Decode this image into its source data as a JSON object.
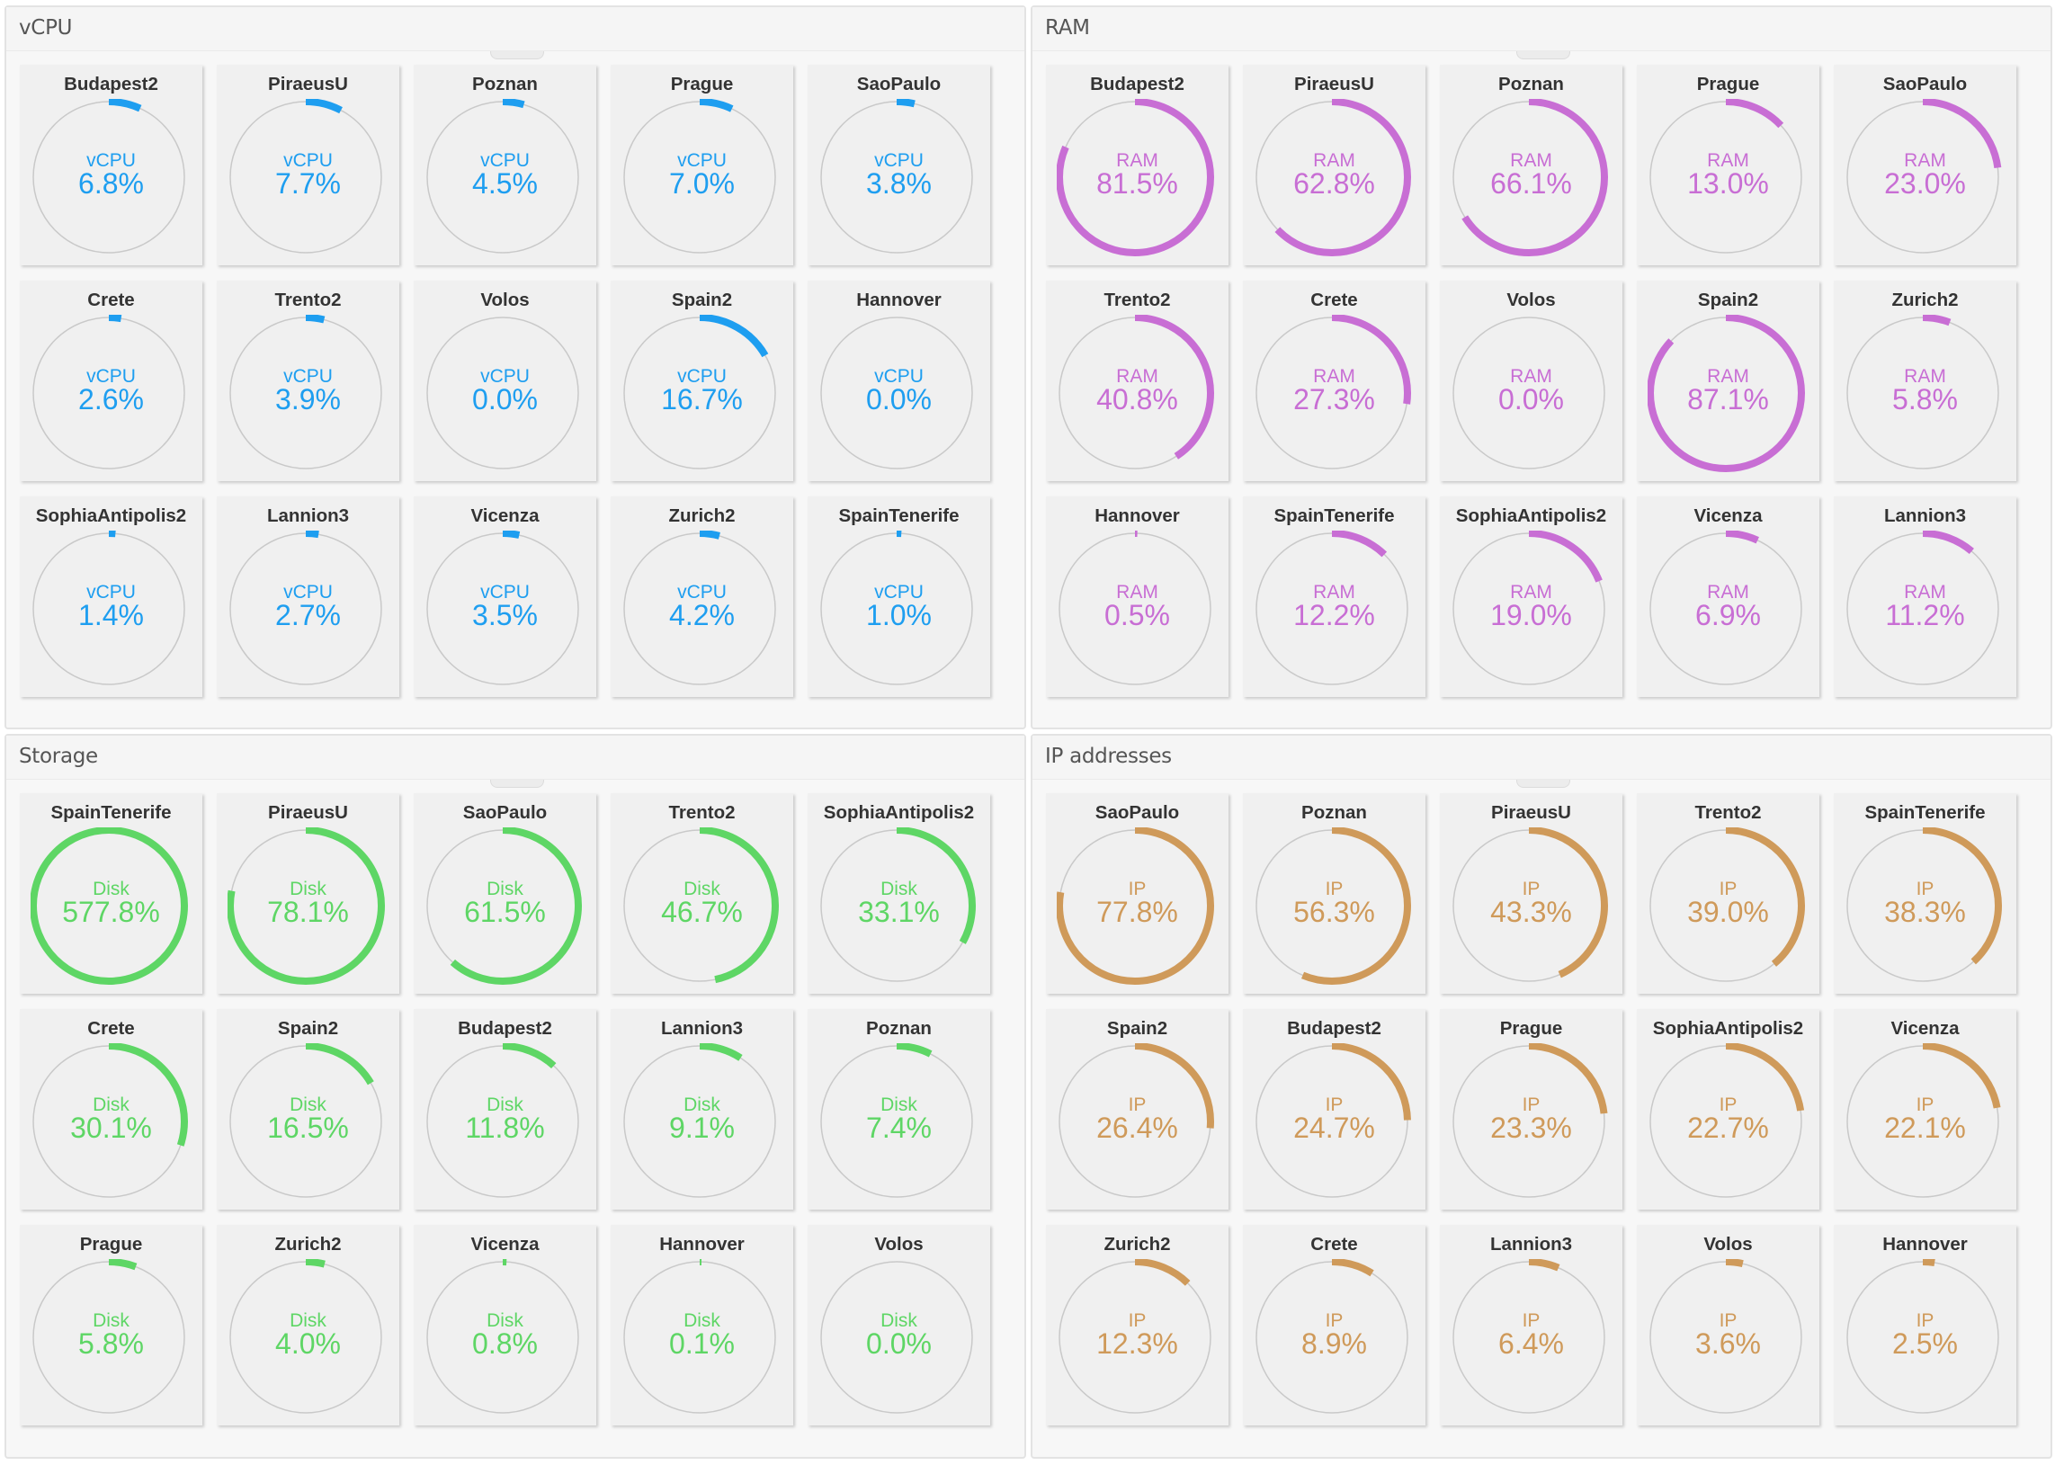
{
  "colors": {
    "track": "#c9c9c9"
  },
  "panels": [
    {
      "key": "vcpu",
      "title": "vCPU",
      "kind": "vCPU",
      "color": "#1e9ef0",
      "tiles": [
        {
          "name": "Budapest2",
          "value": "6.8%",
          "pct": 6.8
        },
        {
          "name": "PiraeusU",
          "value": "7.7%",
          "pct": 7.7
        },
        {
          "name": "Poznan",
          "value": "4.5%",
          "pct": 4.5
        },
        {
          "name": "Prague",
          "value": "7.0%",
          "pct": 7.0
        },
        {
          "name": "SaoPaulo",
          "value": "3.8%",
          "pct": 3.8
        },
        {
          "name": "Crete",
          "value": "2.6%",
          "pct": 2.6
        },
        {
          "name": "Trento2",
          "value": "3.9%",
          "pct": 3.9
        },
        {
          "name": "Volos",
          "value": "0.0%",
          "pct": 0.0
        },
        {
          "name": "Spain2",
          "value": "16.7%",
          "pct": 16.7
        },
        {
          "name": "Hannover",
          "value": "0.0%",
          "pct": 0.0
        },
        {
          "name": "SophiaAntipolis2",
          "value": "1.4%",
          "pct": 1.4
        },
        {
          "name": "Lannion3",
          "value": "2.7%",
          "pct": 2.7
        },
        {
          "name": "Vicenza",
          "value": "3.5%",
          "pct": 3.5
        },
        {
          "name": "Zurich2",
          "value": "4.2%",
          "pct": 4.2
        },
        {
          "name": "SpainTenerife",
          "value": "1.0%",
          "pct": 1.0
        }
      ]
    },
    {
      "key": "ram",
      "title": "RAM",
      "kind": "RAM",
      "color": "#c86ed4",
      "tiles": [
        {
          "name": "Budapest2",
          "value": "81.5%",
          "pct": 81.5
        },
        {
          "name": "PiraeusU",
          "value": "62.8%",
          "pct": 62.8
        },
        {
          "name": "Poznan",
          "value": "66.1%",
          "pct": 66.1
        },
        {
          "name": "Prague",
          "value": "13.0%",
          "pct": 13.0
        },
        {
          "name": "SaoPaulo",
          "value": "23.0%",
          "pct": 23.0
        },
        {
          "name": "Trento2",
          "value": "40.8%",
          "pct": 40.8
        },
        {
          "name": "Crete",
          "value": "27.3%",
          "pct": 27.3
        },
        {
          "name": "Volos",
          "value": "0.0%",
          "pct": 0.0
        },
        {
          "name": "Spain2",
          "value": "87.1%",
          "pct": 87.1
        },
        {
          "name": "Zurich2",
          "value": "5.8%",
          "pct": 5.8
        },
        {
          "name": "Hannover",
          "value": "0.5%",
          "pct": 0.5
        },
        {
          "name": "SpainTenerife",
          "value": "12.2%",
          "pct": 12.2
        },
        {
          "name": "SophiaAntipolis2",
          "value": "19.0%",
          "pct": 19.0
        },
        {
          "name": "Vicenza",
          "value": "6.9%",
          "pct": 6.9
        },
        {
          "name": "Lannion3",
          "value": "11.2%",
          "pct": 11.2
        }
      ]
    },
    {
      "key": "storage",
      "title": "Storage",
      "kind": "Disk",
      "color": "#5ed665",
      "tiles": [
        {
          "name": "SpainTenerife",
          "value": "577.8%",
          "pct": 577.8
        },
        {
          "name": "PiraeusU",
          "value": "78.1%",
          "pct": 78.1
        },
        {
          "name": "SaoPaulo",
          "value": "61.5%",
          "pct": 61.5
        },
        {
          "name": "Trento2",
          "value": "46.7%",
          "pct": 46.7
        },
        {
          "name": "SophiaAntipolis2",
          "value": "33.1%",
          "pct": 33.1
        },
        {
          "name": "Crete",
          "value": "30.1%",
          "pct": 30.1
        },
        {
          "name": "Spain2",
          "value": "16.5%",
          "pct": 16.5
        },
        {
          "name": "Budapest2",
          "value": "11.8%",
          "pct": 11.8
        },
        {
          "name": "Lannion3",
          "value": "9.1%",
          "pct": 9.1
        },
        {
          "name": "Poznan",
          "value": "7.4%",
          "pct": 7.4
        },
        {
          "name": "Prague",
          "value": "5.8%",
          "pct": 5.8
        },
        {
          "name": "Zurich2",
          "value": "4.0%",
          "pct": 4.0
        },
        {
          "name": "Vicenza",
          "value": "0.8%",
          "pct": 0.8
        },
        {
          "name": "Hannover",
          "value": "0.1%",
          "pct": 0.1
        },
        {
          "name": "Volos",
          "value": "0.0%",
          "pct": 0.0
        }
      ]
    },
    {
      "key": "ip",
      "title": "IP addresses",
      "kind": "IP",
      "color": "#cf9a5a",
      "tiles": [
        {
          "name": "SaoPaulo",
          "value": "77.8%",
          "pct": 77.8
        },
        {
          "name": "Poznan",
          "value": "56.3%",
          "pct": 56.3
        },
        {
          "name": "PiraeusU",
          "value": "43.3%",
          "pct": 43.3
        },
        {
          "name": "Trento2",
          "value": "39.0%",
          "pct": 39.0
        },
        {
          "name": "SpainTenerife",
          "value": "38.3%",
          "pct": 38.3
        },
        {
          "name": "Spain2",
          "value": "26.4%",
          "pct": 26.4
        },
        {
          "name": "Budapest2",
          "value": "24.7%",
          "pct": 24.7
        },
        {
          "name": "Prague",
          "value": "23.3%",
          "pct": 23.3
        },
        {
          "name": "SophiaAntipolis2",
          "value": "22.7%",
          "pct": 22.7
        },
        {
          "name": "Vicenza",
          "value": "22.1%",
          "pct": 22.1
        },
        {
          "name": "Zurich2",
          "value": "12.3%",
          "pct": 12.3
        },
        {
          "name": "Crete",
          "value": "8.9%",
          "pct": 8.9
        },
        {
          "name": "Lannion3",
          "value": "6.4%",
          "pct": 6.4
        },
        {
          "name": "Volos",
          "value": "3.6%",
          "pct": 3.6
        },
        {
          "name": "Hannover",
          "value": "2.5%",
          "pct": 2.5
        }
      ]
    }
  ]
}
